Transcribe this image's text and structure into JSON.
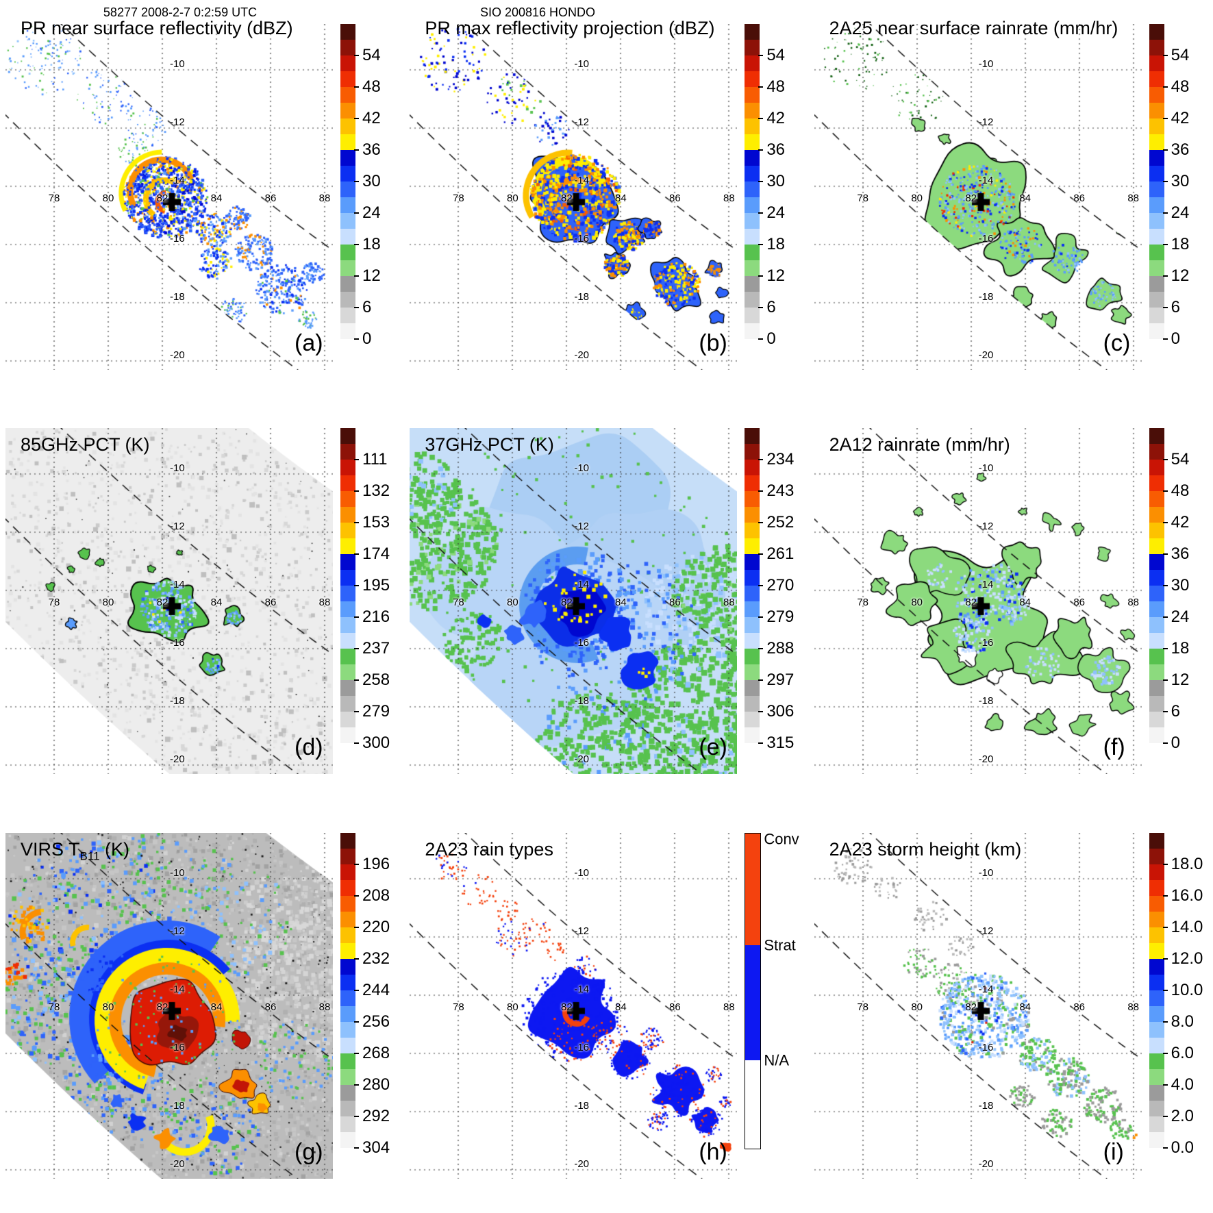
{
  "header": {
    "orbit_datetime": "58277 2008-2-7 0:2:59 UTC",
    "storm_id": "SIO 200816 HONDO"
  },
  "grid": {
    "lon_labels": [
      "78",
      "80",
      "82",
      "84",
      "86",
      "88"
    ],
    "lat_labels": [
      "-10",
      "-12",
      "-14",
      "-16",
      "-18",
      "-20"
    ]
  },
  "palette": [
    "#4a0e08",
    "#8d1208",
    "#c91405",
    "#ef2e03",
    "#f85c02",
    "#fb8f01",
    "#fdc200",
    "#feee00",
    "#0007d0",
    "#0b2ff2",
    "#2e63fa",
    "#5a9cfc",
    "#8ec1fd",
    "#c8dffe",
    "#57c24e",
    "#8cda7e",
    "#9b9b9b",
    "#b9b9b9",
    "#d8d8d8",
    "#f4f4f4"
  ],
  "rain_type_colors": {
    "conv": "#f4420e",
    "strat": "#0d18f2",
    "na": "#ffffff"
  },
  "storm_marker": {
    "symbol": "+",
    "lon": 82.3,
    "lat": -14.5
  },
  "panels": [
    {
      "id": "a",
      "letter": "(a)",
      "title": {
        "pre": "PR near surface reflectivity (dBZ)",
        "sub": "",
        "post": ""
      },
      "colorbar": {
        "kind": "scale",
        "ticks": [
          "54",
          "48",
          "42",
          "36",
          "30",
          "24",
          "18",
          "12",
          "6",
          "0"
        ]
      }
    },
    {
      "id": "b",
      "letter": "(b)",
      "title": {
        "pre": "PR max reflectivity projection (dBZ)",
        "sub": "",
        "post": ""
      },
      "colorbar": {
        "kind": "scale",
        "ticks": [
          "54",
          "48",
          "42",
          "36",
          "30",
          "24",
          "18",
          "12",
          "6",
          "0"
        ]
      }
    },
    {
      "id": "c",
      "letter": "(c)",
      "title": {
        "pre": "2A25 near surface rainrate (mm/hr)",
        "sub": "",
        "post": ""
      },
      "colorbar": {
        "kind": "scale",
        "ticks": [
          "54",
          "48",
          "42",
          "36",
          "30",
          "24",
          "18",
          "12",
          "6",
          "0"
        ]
      }
    },
    {
      "id": "d",
      "letter": "(d)",
      "title": {
        "pre": "85GHz PCT (K)",
        "sub": "",
        "post": ""
      },
      "colorbar": {
        "kind": "scale",
        "ticks": [
          "111",
          "132",
          "153",
          "174",
          "195",
          "216",
          "237",
          "258",
          "279",
          "300"
        ]
      }
    },
    {
      "id": "e",
      "letter": "(e)",
      "title": {
        "pre": "37GHz PCT (K)",
        "sub": "",
        "post": ""
      },
      "colorbar": {
        "kind": "scale",
        "ticks": [
          "234",
          "243",
          "252",
          "261",
          "270",
          "279",
          "288",
          "297",
          "306",
          "315"
        ]
      }
    },
    {
      "id": "f",
      "letter": "(f)",
      "title": {
        "pre": "2A12 rainrate (mm/hr)",
        "sub": "",
        "post": ""
      },
      "colorbar": {
        "kind": "scale",
        "ticks": [
          "54",
          "48",
          "42",
          "36",
          "30",
          "24",
          "18",
          "12",
          "6",
          "0"
        ]
      }
    },
    {
      "id": "g",
      "letter": "(g)",
      "title": {
        "pre": "VIRS T",
        "sub": "B11",
        "post": " (K)"
      },
      "colorbar": {
        "kind": "scale",
        "ticks": [
          "196",
          "208",
          "220",
          "232",
          "244",
          "256",
          "268",
          "280",
          "292",
          "304"
        ]
      }
    },
    {
      "id": "h",
      "letter": "(h)",
      "title": {
        "pre": "2A23 rain types",
        "sub": "",
        "post": ""
      },
      "colorbar": {
        "kind": "classes",
        "classes": [
          "Conv",
          "Strat",
          "N/A"
        ],
        "fractions": [
          0,
          0.355,
          0.72
        ]
      }
    },
    {
      "id": "i",
      "letter": "(i)",
      "title": {
        "pre": "2A23 storm height (km)",
        "sub": "",
        "post": ""
      },
      "colorbar": {
        "kind": "scale",
        "ticks": [
          "18.0",
          "16.0",
          "14.0",
          "12.0",
          "10.0",
          "8.0",
          "6.0",
          "4.0",
          "2.0",
          "0.0"
        ]
      }
    }
  ],
  "chart_data": [
    {
      "panel": "a",
      "type": "heatmap",
      "product": "PR near surface reflectivity",
      "units": "dBZ",
      "colorbar_values": [
        54,
        48,
        42,
        36,
        30,
        24,
        18,
        12,
        6,
        0
      ],
      "lon_ticks": [
        78,
        80,
        82,
        84,
        86,
        88
      ],
      "lat_ticks": [
        -10,
        -12,
        -14,
        -16,
        -18,
        -20
      ],
      "swath": "TRMM PR narrow swath, dashed boundaries",
      "storm_center": {
        "lon": 82.3,
        "lat": -14.5
      }
    },
    {
      "panel": "b",
      "type": "heatmap",
      "product": "PR max reflectivity projection",
      "units": "dBZ",
      "colorbar_values": [
        54,
        48,
        42,
        36,
        30,
        24,
        18,
        12,
        6,
        0
      ],
      "lon_ticks": [
        78,
        80,
        82,
        84,
        86,
        88
      ],
      "lat_ticks": [
        -10,
        -12,
        -14,
        -16,
        -18,
        -20
      ],
      "swath": "TRMM PR narrow swath",
      "storm_center": {
        "lon": 82.3,
        "lat": -14.5
      }
    },
    {
      "panel": "c",
      "type": "heatmap",
      "product": "2A25 near surface rainrate",
      "units": "mm/hr",
      "colorbar_values": [
        54,
        48,
        42,
        36,
        30,
        24,
        18,
        12,
        6,
        0
      ],
      "lon_ticks": [
        78,
        80,
        82,
        84,
        86,
        88
      ],
      "lat_ticks": [
        -10,
        -12,
        -14,
        -16,
        -18,
        -20
      ],
      "swath": "TRMM PR narrow swath",
      "storm_center": {
        "lon": 82.3,
        "lat": -14.5
      }
    },
    {
      "panel": "d",
      "type": "heatmap",
      "product": "85GHz polarization corrected temperature",
      "units": "K",
      "colorbar_values": [
        111,
        132,
        153,
        174,
        195,
        216,
        237,
        258,
        279,
        300
      ],
      "lon_ticks": [
        78,
        80,
        82,
        84,
        86,
        88
      ],
      "lat_ticks": [
        -10,
        -12,
        -14,
        -16,
        -18,
        -20
      ],
      "swath": "TMI wide swath",
      "storm_center": {
        "lon": 82.3,
        "lat": -14.5
      }
    },
    {
      "panel": "e",
      "type": "heatmap",
      "product": "37GHz polarization corrected temperature",
      "units": "K",
      "colorbar_values": [
        234,
        243,
        252,
        261,
        270,
        279,
        288,
        297,
        306,
        315
      ],
      "lon_ticks": [
        78,
        80,
        82,
        84,
        86,
        88
      ],
      "lat_ticks": [
        -10,
        -12,
        -14,
        -16,
        -18,
        -20
      ],
      "swath": "TMI wide swath",
      "storm_center": {
        "lon": 82.3,
        "lat": -14.5
      }
    },
    {
      "panel": "f",
      "type": "heatmap",
      "product": "2A12 rainrate",
      "units": "mm/hr",
      "colorbar_values": [
        54,
        48,
        42,
        36,
        30,
        24,
        18,
        12,
        6,
        0
      ],
      "lon_ticks": [
        78,
        80,
        82,
        84,
        86,
        88
      ],
      "lat_ticks": [
        -10,
        -12,
        -14,
        -16,
        -18,
        -20
      ],
      "swath": "TMI wide swath",
      "storm_center": {
        "lon": 82.3,
        "lat": -14.5
      }
    },
    {
      "panel": "g",
      "type": "heatmap",
      "product": "VIRS channel-4 (11 micron) brightness temperature T_B11",
      "units": "K",
      "colorbar_values": [
        196,
        208,
        220,
        232,
        244,
        256,
        268,
        280,
        292,
        304
      ],
      "lon_ticks": [
        78,
        80,
        82,
        84,
        86,
        88
      ],
      "lat_ticks": [
        -10,
        -12,
        -14,
        -16,
        -18,
        -20
      ],
      "swath": "VIRS wide swath",
      "storm_center": {
        "lon": 82.3,
        "lat": -14.5
      }
    },
    {
      "panel": "h",
      "type": "heatmap",
      "product": "2A23 rain types",
      "units": "class",
      "classes": [
        "Conv",
        "Strat",
        "N/A"
      ],
      "lon_ticks": [
        78,
        80,
        82,
        84,
        86,
        88
      ],
      "lat_ticks": [
        -10,
        -12,
        -14,
        -16,
        -18,
        -20
      ],
      "swath": "TRMM PR narrow swath",
      "storm_center": {
        "lon": 82.3,
        "lat": -14.5
      }
    },
    {
      "panel": "i",
      "type": "heatmap",
      "product": "2A23 storm height",
      "units": "km",
      "colorbar_values": [
        18,
        16,
        14,
        12,
        10,
        8,
        6,
        4,
        2,
        0
      ],
      "lon_ticks": [
        78,
        80,
        82,
        84,
        86,
        88
      ],
      "lat_ticks": [
        -10,
        -12,
        -14,
        -16,
        -18,
        -20
      ],
      "swath": "TRMM PR narrow swath",
      "storm_center": {
        "lon": 82.3,
        "lat": -14.5
      }
    }
  ]
}
